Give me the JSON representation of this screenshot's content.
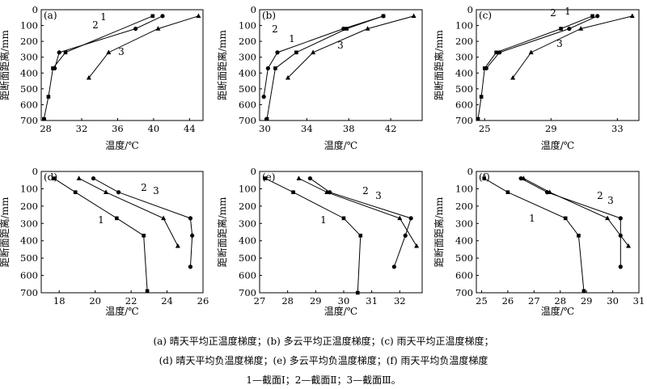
{
  "chart_data": [
    {
      "id": "a",
      "type": "line",
      "panel_label": "(a)",
      "xlabel": "温度/℃",
      "ylabel": "距断面距离/mm",
      "xlim": [
        27.5,
        45.5
      ],
      "ylim": [
        700,
        0
      ],
      "xticks": [
        28,
        32,
        36,
        40,
        44
      ],
      "yticks": [
        0,
        100,
        200,
        300,
        400,
        500,
        600,
        700
      ],
      "series": [
        {
          "name": "1",
          "marker": "square",
          "x": [
            39.9,
            30.2,
            28.8,
            28.3,
            27.8
          ],
          "y": [
            40,
            270,
            370,
            550,
            690
          ]
        },
        {
          "name": "2",
          "marker": "circle",
          "x": [
            41.0,
            38.0,
            29.5,
            29.0,
            28.9
          ],
          "y": [
            40,
            120,
            270,
            370,
            370
          ]
        },
        {
          "name": "3",
          "marker": "triangle",
          "x": [
            45.0,
            40.5,
            35.0,
            32.8
          ],
          "y": [
            40,
            120,
            270,
            430
          ]
        }
      ]
    },
    {
      "id": "b",
      "type": "line",
      "panel_label": "(b)",
      "xlabel": "温度/℃",
      "ylabel": "距断面距离/mm",
      "xlim": [
        29.5,
        45.0
      ],
      "ylim": [
        700,
        0
      ],
      "xticks": [
        30,
        34,
        38,
        42
      ],
      "yticks": [
        0,
        100,
        200,
        300,
        400,
        500,
        600,
        700
      ],
      "series": [
        {
          "name": "1",
          "marker": "square",
          "x": [
            41.3,
            37.8,
            33.0,
            31.0,
            30.2
          ],
          "y": [
            40,
            120,
            270,
            370,
            690
          ]
        },
        {
          "name": "2",
          "marker": "circle",
          "x": [
            41.3,
            37.5,
            31.2,
            30.3,
            29.9
          ],
          "y": [
            40,
            120,
            270,
            370,
            550
          ]
        },
        {
          "name": "3",
          "marker": "triangle",
          "x": [
            44.2,
            39.8,
            34.6,
            32.2
          ],
          "y": [
            40,
            120,
            270,
            430
          ]
        }
      ]
    },
    {
      "id": "c",
      "type": "line",
      "panel_label": "(c)",
      "xlabel": "温度/℃",
      "ylabel": "距断面距离/mm",
      "xlim": [
        24.5,
        34.3
      ],
      "ylim": [
        700,
        0
      ],
      "xticks": [
        25,
        29,
        33
      ],
      "yticks": [
        0,
        100,
        200,
        300,
        400,
        500,
        600,
        700
      ],
      "series": [
        {
          "name": "1",
          "marker": "square",
          "x": [
            31.5,
            29.6,
            25.7,
            25.0,
            24.8,
            24.6
          ],
          "y": [
            40,
            120,
            270,
            370,
            550,
            690
          ]
        },
        {
          "name": "2",
          "marker": "circle",
          "x": [
            31.8,
            30.1,
            25.9,
            25.1
          ],
          "y": [
            40,
            120,
            270,
            370
          ]
        },
        {
          "name": "3",
          "marker": "triangle",
          "x": [
            33.9,
            30.8,
            27.8,
            26.7
          ],
          "y": [
            40,
            120,
            270,
            430
          ]
        }
      ]
    },
    {
      "id": "d",
      "type": "line",
      "panel_label": "(d)",
      "xlabel": "温度/℃",
      "ylabel": "距断面距离/mm",
      "xlim": [
        17.0,
        26.0
      ],
      "ylim": [
        700,
        0
      ],
      "xticks": [
        18,
        20,
        22,
        24,
        26
      ],
      "yticks": [
        0,
        100,
        200,
        300,
        400,
        500,
        600,
        700
      ],
      "series": [
        {
          "name": "1",
          "marker": "square",
          "x": [
            17.7,
            18.9,
            21.2,
            22.7,
            22.9
          ],
          "y": [
            40,
            120,
            270,
            370,
            690
          ]
        },
        {
          "name": "2",
          "marker": "circle",
          "x": [
            19.9,
            21.3,
            25.3,
            25.4,
            25.3
          ],
          "y": [
            40,
            120,
            270,
            370,
            550
          ]
        },
        {
          "name": "3",
          "marker": "triangle",
          "x": [
            19.1,
            20.6,
            23.8,
            24.6
          ],
          "y": [
            40,
            120,
            270,
            430
          ]
        }
      ]
    },
    {
      "id": "e",
      "type": "line",
      "panel_label": "(e)",
      "xlabel": "温度/℃",
      "ylabel": "距断面距离/mm",
      "xlim": [
        27.0,
        32.8
      ],
      "ylim": [
        700,
        0
      ],
      "xticks": [
        27,
        28,
        29,
        30,
        31,
        32
      ],
      "yticks": [
        0,
        100,
        200,
        300,
        400,
        500,
        600,
        700
      ],
      "series": [
        {
          "name": "1",
          "marker": "square",
          "x": [
            27.2,
            28.2,
            30.0,
            30.6,
            30.5
          ],
          "y": [
            40,
            120,
            270,
            370,
            700
          ]
        },
        {
          "name": "2",
          "marker": "circle",
          "x": [
            28.8,
            29.5,
            32.4,
            32.2,
            31.8
          ],
          "y": [
            40,
            120,
            270,
            370,
            550
          ]
        },
        {
          "name": "3",
          "marker": "triangle",
          "x": [
            28.4,
            29.4,
            32.0,
            32.6
          ],
          "y": [
            40,
            120,
            270,
            430
          ]
        }
      ]
    },
    {
      "id": "f",
      "type": "line",
      "panel_label": "(f)",
      "xlabel": "温度/℃",
      "ylabel": "距断面距离/mm",
      "xlim": [
        24.8,
        31.0
      ],
      "ylim": [
        700,
        0
      ],
      "xticks": [
        25,
        26,
        27,
        28,
        29,
        30,
        31
      ],
      "yticks": [
        0,
        100,
        200,
        300,
        400,
        500,
        600,
        700
      ],
      "series": [
        {
          "name": "1",
          "marker": "square",
          "x": [
            25.1,
            26.0,
            28.2,
            28.7,
            28.9
          ],
          "y": [
            40,
            120,
            270,
            370,
            690
          ]
        },
        {
          "name": "2",
          "marker": "circle",
          "x": [
            26.5,
            27.5,
            30.3,
            30.3,
            30.3
          ],
          "y": [
            40,
            120,
            270,
            370,
            550
          ]
        },
        {
          "name": "3",
          "marker": "triangle",
          "x": [
            26.6,
            27.6,
            29.8,
            30.6
          ],
          "y": [
            40,
            120,
            270,
            430
          ]
        }
      ]
    }
  ],
  "caption": {
    "line1": "(a)  晴天平均正温度梯度；(b)  多云平均正温度梯度；(c)  雨天平均正温度梯度；",
    "line2": "(d)  晴天平均负温度梯度；(e)  多云平均负温度梯度；(f)  雨天平均负温度梯度",
    "line3": "1—截面Ⅰ；2—截面Ⅱ；3—截面Ⅲ。"
  }
}
